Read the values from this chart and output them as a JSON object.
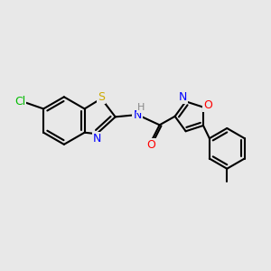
{
  "bg_color": "#e8e8e8",
  "bond_color": "#000000",
  "bond_width": 1.5,
  "atoms": {
    "Cl": {
      "color": "#00bb00"
    },
    "S": {
      "color": "#ccaa00"
    },
    "N": {
      "color": "#0000ff"
    },
    "O": {
      "color": "#ff0000"
    },
    "H": {
      "color": "#888888"
    }
  },
  "figsize": [
    3.0,
    3.0
  ],
  "dpi": 100
}
